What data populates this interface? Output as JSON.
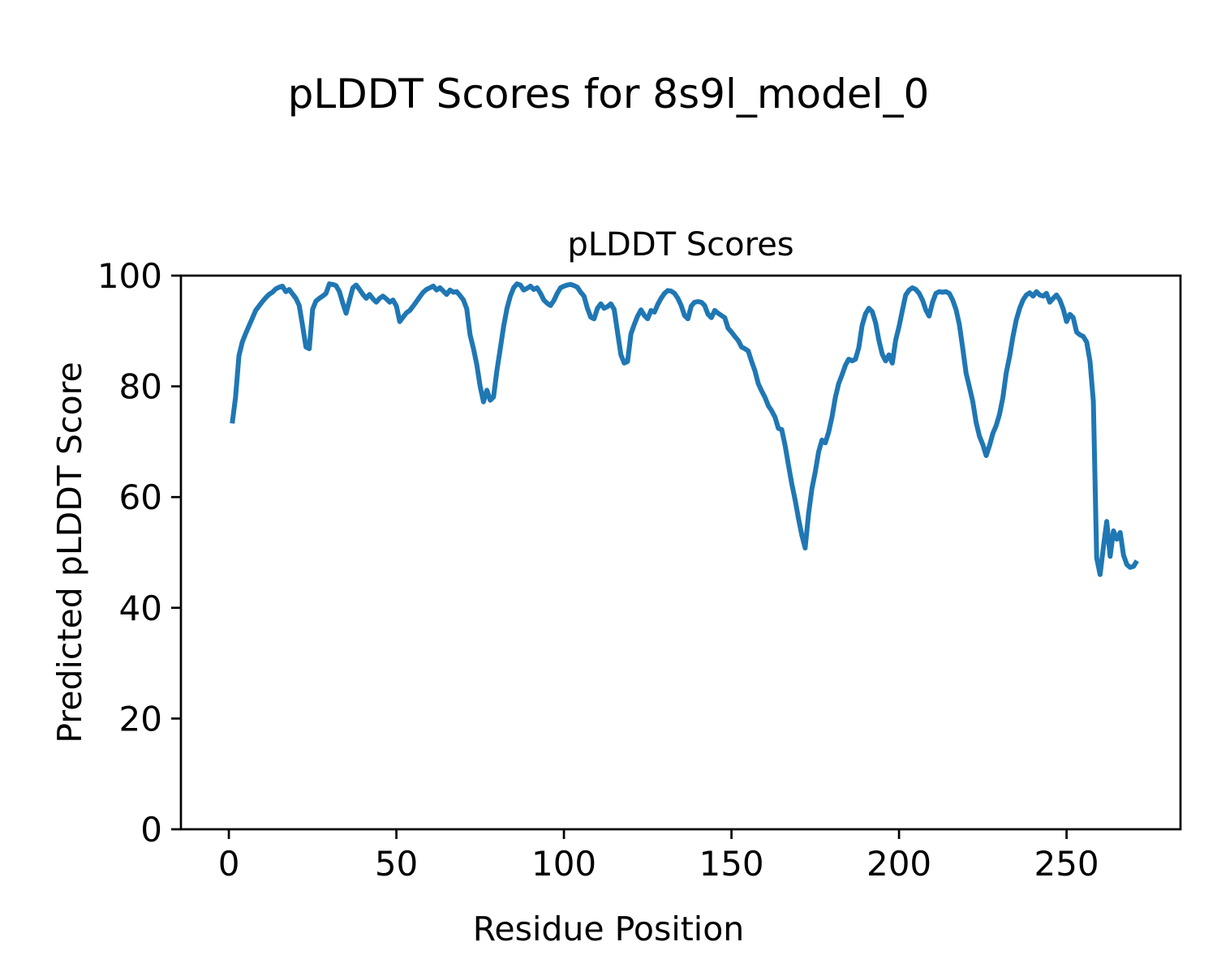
{
  "figure_title": "pLDDT Scores for 8s9l_model_0",
  "colors": {
    "line": "#1f77b4",
    "axes": "#000000",
    "background": "#ffffff"
  },
  "chart_data": {
    "type": "line",
    "title": "pLDDT Scores",
    "xlabel": "Residue Position",
    "ylabel": "Predicted pLDDT Score",
    "x_start": 1,
    "x_ticks": [
      0,
      50,
      100,
      150,
      200,
      250
    ],
    "y_ticks": [
      0,
      20,
      40,
      60,
      80,
      100
    ],
    "xlim": [
      -14.3,
      284.0
    ],
    "ylim": [
      0,
      100
    ],
    "grid": false,
    "legend": "none",
    "series": [
      {
        "name": "pLDDT",
        "color": "#1f77b4",
        "values": [
          73.3,
          78.0,
          85.5,
          88.0,
          89.5,
          90.9,
          92.3,
          93.7,
          94.5,
          95.3,
          96.0,
          96.6,
          97.0,
          97.6,
          97.9,
          98.1,
          97.1,
          97.5,
          96.7,
          95.9,
          94.6,
          91.0,
          87.1,
          86.8,
          93.9,
          95.4,
          95.9,
          96.3,
          96.8,
          98.5,
          98.4,
          98.2,
          97.1,
          95.0,
          93.2,
          95.5,
          97.8,
          98.3,
          97.5,
          96.6,
          95.9,
          96.6,
          95.8,
          95.2,
          95.9,
          96.3,
          95.8,
          95.2,
          95.6,
          94.5,
          91.7,
          92.5,
          93.3,
          93.7,
          94.5,
          95.3,
          96.2,
          97.0,
          97.5,
          97.8,
          98.1,
          97.4,
          97.8,
          97.2,
          96.6,
          97.4,
          97.0,
          97.1,
          96.4,
          95.6,
          94.0,
          89.3,
          86.8,
          83.9,
          80.0,
          77.2,
          79.3,
          77.5,
          78.1,
          82.9,
          86.8,
          90.8,
          94.1,
          96.3,
          97.8,
          98.5,
          98.3,
          97.4,
          97.7,
          98.1,
          97.5,
          97.8,
          96.8,
          95.6,
          95.0,
          94.6,
          95.5,
          96.8,
          97.8,
          98.1,
          98.3,
          98.4,
          98.2,
          97.9,
          97.0,
          96.3,
          94.1,
          92.5,
          92.2,
          94.1,
          94.9,
          94.1,
          94.4,
          94.9,
          93.9,
          89.8,
          85.7,
          84.2,
          84.5,
          89.5,
          91.2,
          92.7,
          93.8,
          92.8,
          92.2,
          93.7,
          93.4,
          94.8,
          95.9,
          96.8,
          97.3,
          97.2,
          96.8,
          95.9,
          94.6,
          92.8,
          92.2,
          94.5,
          95.2,
          95.3,
          95.2,
          94.6,
          93.0,
          92.4,
          93.7,
          93.2,
          92.8,
          92.4,
          90.5,
          89.8,
          89.0,
          88.3,
          87.1,
          86.8,
          86.4,
          84.5,
          82.8,
          80.5,
          79.2,
          78.0,
          76.5,
          75.6,
          74.4,
          72.4,
          72.2,
          69.3,
          65.8,
          62.4,
          59.5,
          56.1,
          53.1,
          50.8,
          57.0,
          61.5,
          64.5,
          68.2,
          70.3,
          69.8,
          71.7,
          74.5,
          78.0,
          80.5,
          82.1,
          83.8,
          84.9,
          84.6,
          84.9,
          87.0,
          91.0,
          93.1,
          94.1,
          93.5,
          91.5,
          88.3,
          85.8,
          84.6,
          85.7,
          84.2,
          88.3,
          90.8,
          93.7,
          96.5,
          97.4,
          97.8,
          97.5,
          96.8,
          95.6,
          93.8,
          92.7,
          95.2,
          96.8,
          97.1,
          97.0,
          97.1,
          96.8,
          95.6,
          93.9,
          91.2,
          87.0,
          82.4,
          79.9,
          77.3,
          73.5,
          71.0,
          69.5,
          67.5,
          69.3,
          71.5,
          72.9,
          75.0,
          78.0,
          82.4,
          85.4,
          89.0,
          92.0,
          94.1,
          95.6,
          96.5,
          96.9,
          96.3,
          97.1,
          96.5,
          96.3,
          96.8,
          95.2,
          95.9,
          96.5,
          95.6,
          94.0,
          91.7,
          93.0,
          92.4,
          89.8,
          89.3,
          89.0,
          88.0,
          84.5,
          77.3,
          49.0,
          46.0,
          51.0,
          55.6,
          49.3,
          53.9,
          52.4,
          53.6,
          49.5,
          47.8,
          47.3,
          47.5,
          48.5
        ]
      }
    ]
  }
}
